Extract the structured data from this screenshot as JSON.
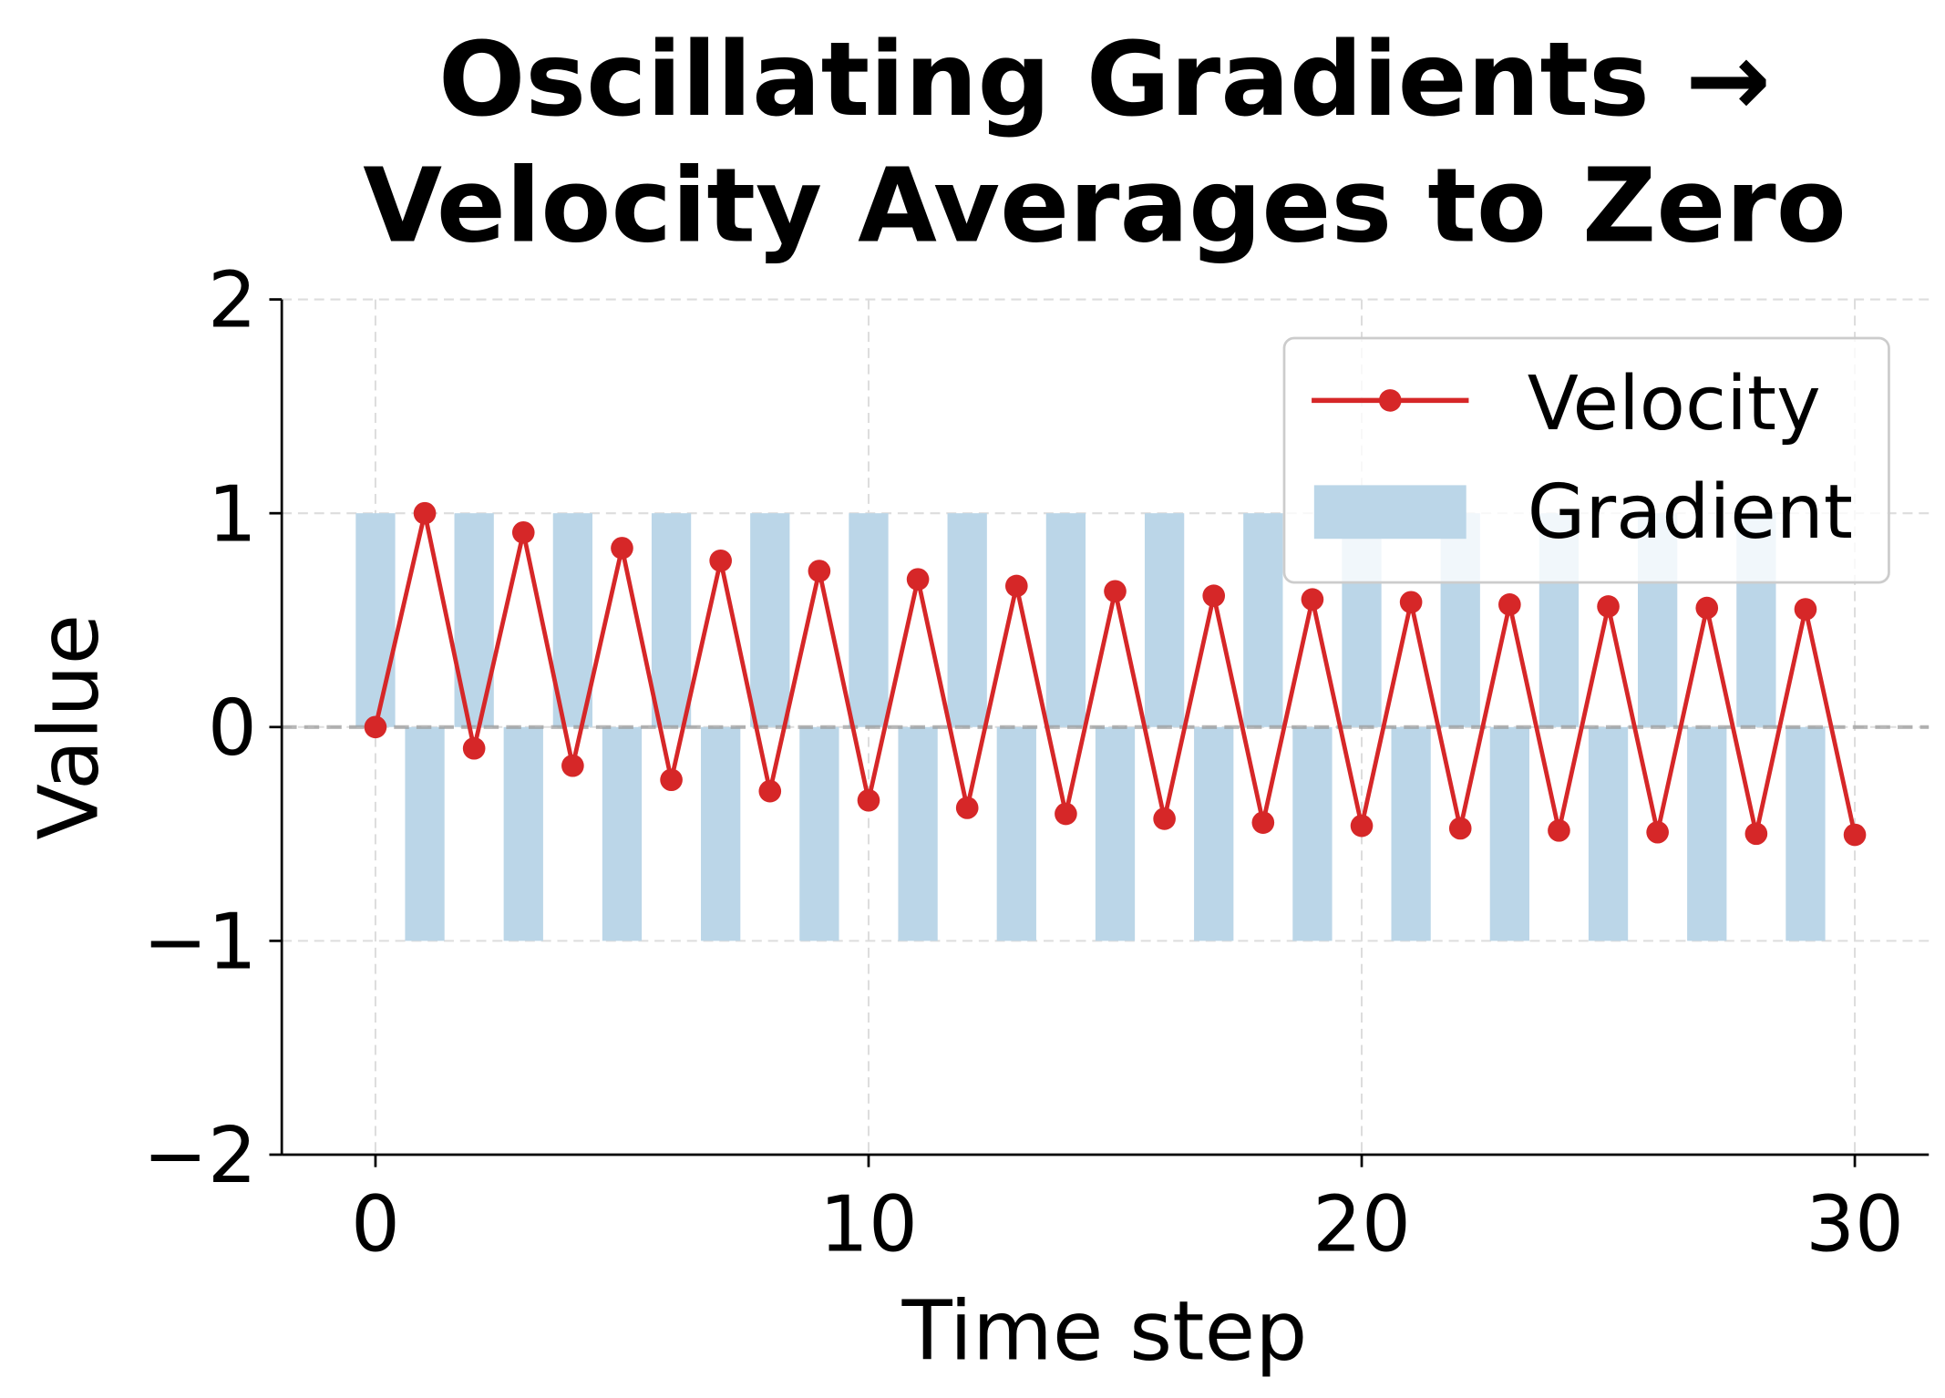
{
  "chart_data": {
    "type": "bar+line",
    "title_lines": [
      "Oscillating Gradients →",
      "Velocity Averages to Zero"
    ],
    "xlabel": "Time step",
    "ylabel": "Value",
    "xlim": [
      -1.9,
      31.5
    ],
    "ylim": [
      -2,
      2
    ],
    "xticks": [
      0,
      10,
      20,
      30
    ],
    "yticks": [
      -2,
      -1,
      0,
      1,
      2
    ],
    "ytick_labels": [
      "−2",
      "−1",
      "0",
      "1",
      "2"
    ],
    "grid": true,
    "legend_position": "top-right",
    "zero_reference_line": 0,
    "series": [
      {
        "name": "Velocity",
        "type": "line",
        "color": "#d62728",
        "x": [
          0,
          1,
          2,
          3,
          4,
          5,
          6,
          7,
          8,
          9,
          10,
          11,
          12,
          13,
          14,
          15,
          16,
          17,
          18,
          19,
          20,
          21,
          22,
          23,
          24,
          25,
          26,
          27,
          28,
          29,
          30
        ],
        "values": [
          0,
          1,
          -0.1,
          0.91,
          -0.181,
          0.837,
          -0.247,
          0.778,
          -0.3,
          0.73,
          -0.343,
          0.691,
          -0.378,
          0.66,
          -0.406,
          0.635,
          -0.429,
          0.614,
          -0.447,
          0.597,
          -0.462,
          0.584,
          -0.474,
          0.573,
          -0.484,
          0.564,
          -0.492,
          0.557,
          -0.499,
          0.551,
          -0.504
        ]
      },
      {
        "name": "Gradient",
        "type": "bar",
        "color": "#bbd6e8",
        "x": [
          0,
          1,
          2,
          3,
          4,
          5,
          6,
          7,
          8,
          9,
          10,
          11,
          12,
          13,
          14,
          15,
          16,
          17,
          18,
          19,
          20,
          21,
          22,
          23,
          24,
          25,
          26,
          27,
          28,
          29
        ],
        "values": [
          1,
          -1,
          1,
          -1,
          1,
          -1,
          1,
          -1,
          1,
          -1,
          1,
          -1,
          1,
          -1,
          1,
          -1,
          1,
          -1,
          1,
          -1,
          1,
          -1,
          1,
          -1,
          1,
          -1,
          1,
          -1,
          1,
          -1
        ]
      }
    ]
  }
}
